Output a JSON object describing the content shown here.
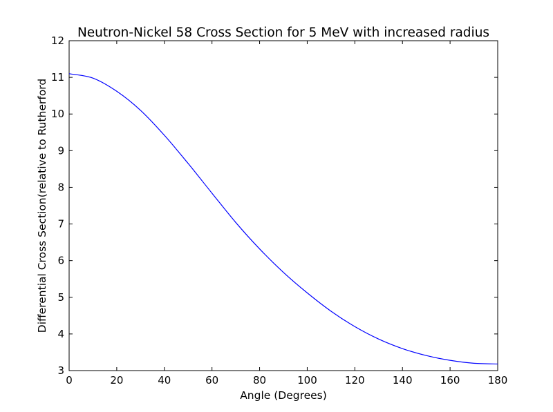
{
  "chart_data": {
    "type": "line",
    "title": "Neutron-Nickel 58 Cross Section for 5 MeV with increased radius",
    "xlabel": "Angle (Degrees)",
    "ylabel": "Differential Cross Section(relative to Rutherford",
    "xlim": [
      0,
      180
    ],
    "ylim": [
      3,
      12
    ],
    "xticks": [
      0,
      20,
      40,
      60,
      80,
      100,
      120,
      140,
      160,
      180
    ],
    "yticks": [
      3,
      4,
      5,
      6,
      7,
      8,
      9,
      10,
      11,
      12
    ],
    "grid": false,
    "line_color": "#0000ff",
    "series": [
      {
        "x": [
          0,
          10,
          20,
          30,
          40,
          50,
          60,
          70,
          80,
          90,
          100,
          110,
          120,
          130,
          140,
          150,
          160,
          170,
          180
        ],
        "values": [
          11.1,
          10.98,
          10.62,
          10.1,
          9.42,
          8.65,
          7.84,
          7.04,
          6.32,
          5.68,
          5.12,
          4.62,
          4.2,
          3.86,
          3.6,
          3.41,
          3.28,
          3.2,
          3.18
        ]
      }
    ]
  }
}
